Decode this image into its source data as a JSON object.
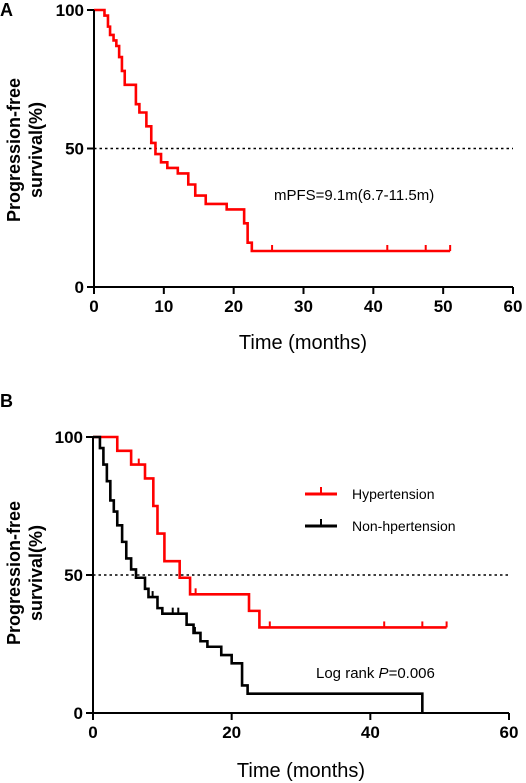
{
  "chart_data": [
    {
      "panel": "A",
      "type": "line",
      "xlabel": "Time (months)",
      "ylabel_lines": [
        "Progression-free",
        "survival(%)"
      ],
      "xlim": [
        0,
        60
      ],
      "ylim": [
        0,
        100
      ],
      "x_ticks": [
        0,
        10,
        20,
        30,
        40,
        50,
        60
      ],
      "y_ticks": [
        0,
        50,
        100
      ],
      "reference_line_y": 50,
      "annotation": "mPFS=9.1m(6.7-11.5m)",
      "series": [
        {
          "color": "#ff0000",
          "steps": [
            [
              0,
              100
            ],
            [
              1.5,
              100
            ],
            [
              1.5,
              98
            ],
            [
              2,
              98
            ],
            [
              2,
              94
            ],
            [
              2.3,
              94
            ],
            [
              2.3,
              91
            ],
            [
              2.8,
              91
            ],
            [
              2.8,
              89
            ],
            [
              3.2,
              89
            ],
            [
              3.2,
              87
            ],
            [
              3.6,
              87
            ],
            [
              3.6,
              83
            ],
            [
              4,
              83
            ],
            [
              4,
              78
            ],
            [
              4.4,
              78
            ],
            [
              4.4,
              73
            ],
            [
              6,
              73
            ],
            [
              6,
              66
            ],
            [
              6.5,
              66
            ],
            [
              6.5,
              63
            ],
            [
              7.5,
              63
            ],
            [
              7.5,
              58
            ],
            [
              8.2,
              58
            ],
            [
              8.2,
              52
            ],
            [
              8.8,
              52
            ],
            [
              8.8,
              48
            ],
            [
              9.6,
              48
            ],
            [
              9.6,
              45
            ],
            [
              10.5,
              45
            ],
            [
              10.5,
              43
            ],
            [
              12,
              43
            ],
            [
              12,
              41
            ],
            [
              13.5,
              41
            ],
            [
              13.5,
              37
            ],
            [
              14.5,
              37
            ],
            [
              14.5,
              33
            ],
            [
              16,
              33
            ],
            [
              16,
              30
            ],
            [
              19,
              30
            ],
            [
              19,
              28
            ],
            [
              21.5,
              28
            ],
            [
              21.5,
              23
            ],
            [
              22,
              23
            ],
            [
              22,
              16
            ],
            [
              22.6,
              16
            ],
            [
              22.6,
              13
            ],
            [
              51,
              13
            ]
          ],
          "censor_x": [
            25.5,
            42,
            47.5,
            51
          ]
        }
      ]
    },
    {
      "panel": "B",
      "type": "line",
      "xlabel": "Time (months)",
      "ylabel_lines": [
        "Progression-free",
        "survival(%)"
      ],
      "xlim": [
        0,
        60
      ],
      "ylim": [
        0,
        100
      ],
      "x_ticks": [
        0,
        20,
        40,
        60
      ],
      "y_ticks": [
        0,
        50,
        100
      ],
      "reference_line_y": 50,
      "annotation_prefix": "Log rank ",
      "annotation_p": "P",
      "annotation_suffix": "=0.006",
      "series": [
        {
          "name": "Hypertension",
          "color": "#ff0000",
          "steps": [
            [
              0,
              100
            ],
            [
              3.5,
              100
            ],
            [
              3.5,
              95
            ],
            [
              5.5,
              95
            ],
            [
              5.5,
              90
            ],
            [
              7.5,
              90
            ],
            [
              7.5,
              85
            ],
            [
              8.7,
              85
            ],
            [
              8.7,
              75
            ],
            [
              9.3,
              75
            ],
            [
              9.3,
              65
            ],
            [
              10.3,
              65
            ],
            [
              10.3,
              55
            ],
            [
              12.5,
              55
            ],
            [
              12.5,
              49
            ],
            [
              14,
              49
            ],
            [
              14,
              43
            ],
            [
              22.5,
              43
            ],
            [
              22.5,
              37
            ],
            [
              24,
              37
            ],
            [
              24,
              31
            ],
            [
              51,
              31
            ]
          ],
          "censor_x": [
            6.6,
            14.8,
            25.5,
            42,
            47.5,
            51
          ]
        },
        {
          "name": "Non-hpertension",
          "color": "#000000",
          "steps": [
            [
              0,
              100
            ],
            [
              1,
              100
            ],
            [
              1,
              96
            ],
            [
              1.5,
              96
            ],
            [
              1.5,
              90
            ],
            [
              2,
              90
            ],
            [
              2,
              84
            ],
            [
              2.5,
              84
            ],
            [
              2.5,
              77
            ],
            [
              3,
              77
            ],
            [
              3,
              73
            ],
            [
              3.5,
              73
            ],
            [
              3.5,
              68
            ],
            [
              4.2,
              68
            ],
            [
              4.2,
              62
            ],
            [
              4.8,
              62
            ],
            [
              4.8,
              56
            ],
            [
              5.5,
              56
            ],
            [
              5.5,
              52
            ],
            [
              6.2,
              52
            ],
            [
              6.2,
              49
            ],
            [
              7.5,
              49
            ],
            [
              7.5,
              45
            ],
            [
              8,
              45
            ],
            [
              8,
              42
            ],
            [
              9.3,
              42
            ],
            [
              9.3,
              38
            ],
            [
              10,
              38
            ],
            [
              10,
              36
            ],
            [
              13.5,
              36
            ],
            [
              13.5,
              32
            ],
            [
              14.5,
              32
            ],
            [
              14.5,
              29
            ],
            [
              15.5,
              29
            ],
            [
              15.5,
              26
            ],
            [
              16.5,
              26
            ],
            [
              16.5,
              24
            ],
            [
              18.5,
              24
            ],
            [
              18.5,
              21
            ],
            [
              20,
              21
            ],
            [
              20,
              18
            ],
            [
              21.5,
              18
            ],
            [
              21.5,
              10
            ],
            [
              22.3,
              10
            ],
            [
              22.3,
              7
            ],
            [
              47.5,
              7
            ],
            [
              47.5,
              0
            ]
          ],
          "censor_x": [
            6.2,
            8.6,
            11.5,
            12.3,
            14.7
          ]
        }
      ]
    }
  ]
}
